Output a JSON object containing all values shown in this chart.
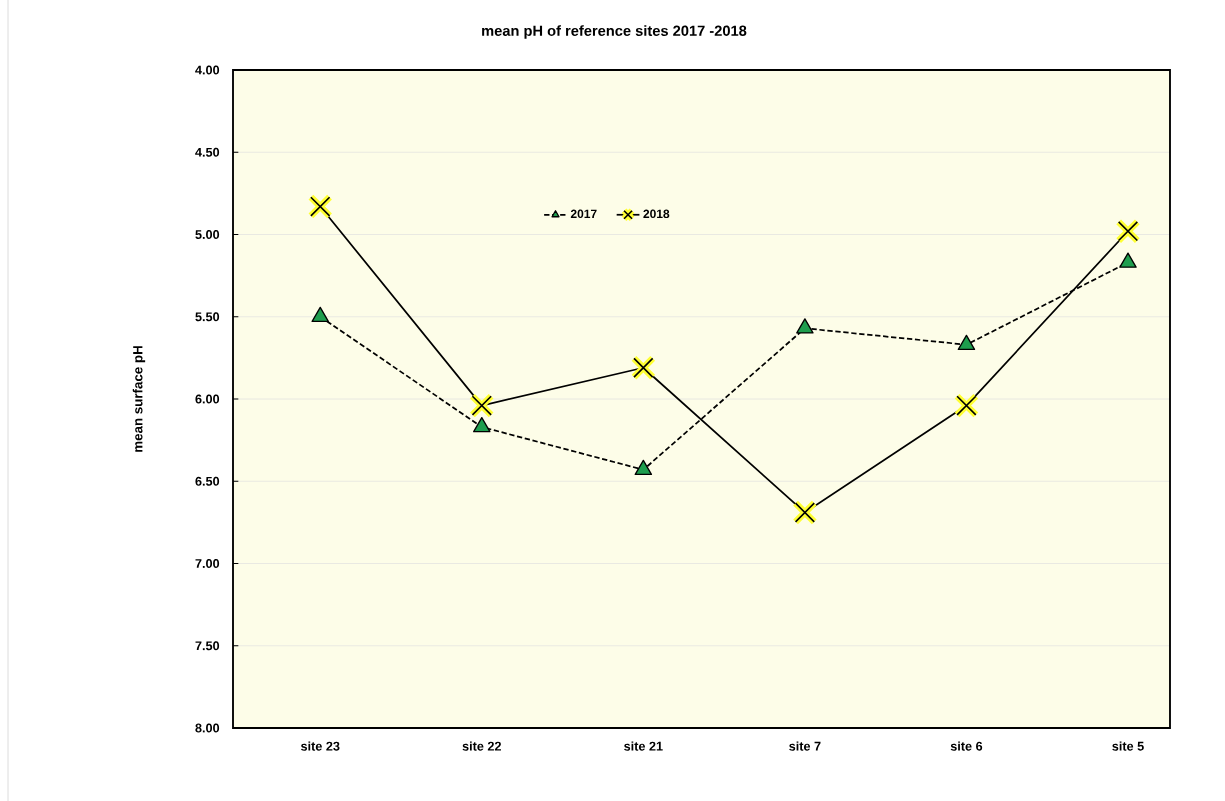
{
  "chart_data": {
    "type": "line",
    "title": "mean pH of reference sites 2017 -2018",
    "ylabel": "mean surface pH",
    "categories": [
      "site 23",
      "site 22",
      "site 21",
      "site 7",
      "site 6",
      "site 5"
    ],
    "series": [
      {
        "name": "2017",
        "color": "#1e9e4e",
        "marker": "triangle",
        "line_style": "dashed",
        "values": [
          5.5,
          6.17,
          6.43,
          5.57,
          5.67,
          5.17
        ]
      },
      {
        "name": "2018",
        "color": "#ffff33",
        "marker": "cross",
        "line_style": "solid",
        "values": [
          4.83,
          6.04,
          5.81,
          6.69,
          6.04,
          4.98
        ]
      }
    ],
    "ylim": [
      8,
      4
    ],
    "yticks": [
      {
        "value": 4,
        "label": "4.00"
      },
      {
        "value": 4.5,
        "label": "4.50"
      },
      {
        "value": 5,
        "label": "5.00"
      },
      {
        "value": 5.5,
        "label": "5.50"
      },
      {
        "value": 6,
        "label": "6.00"
      },
      {
        "value": 6.5,
        "label": "6.50"
      },
      {
        "value": 7,
        "label": "7.00"
      },
      {
        "value": 7.5,
        "label": "7.50"
      },
      {
        "value": 8,
        "label": "8.00"
      }
    ],
    "grid": "y",
    "legend": "top"
  }
}
